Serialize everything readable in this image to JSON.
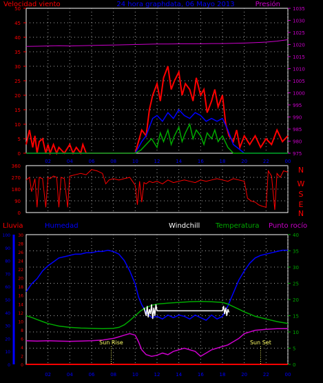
{
  "colors": {
    "background": "#000000",
    "axis_left_top": "#ff0000",
    "axis_right_top": "#cc00cc",
    "grid": "#aaaaaa",
    "title": "#0000ff",
    "wind_gust": "#ff0000",
    "wind_avg": "#0000ff",
    "wind_min": "#00aa00",
    "pressure": "#cc00cc",
    "direction": "#ff0000",
    "humidity": "#0000ff",
    "windchill": "#ffffff",
    "temperature": "#00aa00",
    "dewpoint": "#cc00cc",
    "rain": "#ff0000",
    "sun_label": "#ffff66",
    "x_tick": "#0000ff",
    "left_axis_bottom": "#ff0000",
    "humidity_axis": "#0000ff",
    "right_axis_bottom": "#00aa00"
  },
  "chart_data": [
    {
      "type": "line",
      "title": "24 hora graphdata, 06 Mayo 2013",
      "left_label": "Velocidad viento",
      "right_label": "Presión",
      "x_ticks": [
        "02",
        "04",
        "06",
        "08",
        "10",
        "12",
        "14",
        "16",
        "18",
        "20",
        "22",
        "00"
      ],
      "x_range": [
        0,
        24
      ],
      "y_left_ticks": [
        0,
        5,
        10,
        15,
        20,
        25,
        30,
        35,
        40,
        45,
        50
      ],
      "y_left_range": [
        0,
        50
      ],
      "y_right_ticks": [
        975,
        980,
        985,
        990,
        995,
        1000,
        1005,
        1010,
        1015,
        1020,
        1025,
        1030,
        1035
      ],
      "y_right_range": [
        975,
        1035
      ],
      "grid": true,
      "series": [
        {
          "key": "wind_gust",
          "x": [
            0,
            0.3,
            0.6,
            0.8,
            1.0,
            1.2,
            1.5,
            1.8,
            2.0,
            2.2,
            2.5,
            2.8,
            3.0,
            3.5,
            4.0,
            4.3,
            4.6,
            5.0,
            5.2,
            5.5,
            6.0,
            6.5,
            7.0,
            7.5,
            8.0,
            8.5,
            9.0,
            9.5,
            10.0,
            10.3,
            10.6,
            11.0,
            11.3,
            11.6,
            12.0,
            12.3,
            12.6,
            13.0,
            13.3,
            13.6,
            14.0,
            14.3,
            14.6,
            15.0,
            15.3,
            15.6,
            16.0,
            16.3,
            16.6,
            17.0,
            17.3,
            17.6,
            18.0,
            18.3,
            18.6,
            19.0,
            19.3,
            19.6,
            20.0,
            20.5,
            21.0,
            21.5,
            22.0,
            22.5,
            23.0,
            23.5,
            24.0
          ],
          "y": [
            3,
            8,
            2,
            6,
            0,
            4,
            5,
            0,
            3,
            0,
            3,
            0,
            2,
            0,
            3,
            0,
            2,
            0,
            3,
            0,
            0,
            0,
            0,
            0,
            0,
            0,
            0,
            0,
            0,
            4,
            8,
            6,
            15,
            20,
            24,
            18,
            26,
            30,
            22,
            25,
            28,
            20,
            24,
            22,
            18,
            26,
            20,
            22,
            14,
            18,
            22,
            16,
            20,
            10,
            6,
            4,
            8,
            2,
            6,
            3,
            6,
            2,
            5,
            3,
            8,
            4,
            6
          ]
        },
        {
          "key": "wind_avg",
          "x": [
            0,
            2,
            4,
            6,
            8,
            10,
            10.3,
            10.6,
            11.0,
            11.3,
            11.6,
            12.0,
            12.5,
            13.0,
            13.5,
            14.0,
            14.5,
            15.0,
            15.5,
            16.0,
            16.5,
            17.0,
            17.5,
            18.0,
            18.5,
            19.0,
            20,
            22,
            24
          ],
          "y": [
            0,
            0,
            0,
            0,
            0,
            0,
            2,
            4,
            6,
            9,
            12,
            13,
            11,
            14,
            12,
            15,
            13,
            12,
            14,
            13,
            11,
            12,
            11,
            12,
            8,
            3,
            0,
            0,
            0
          ]
        },
        {
          "key": "wind_min",
          "x": [
            0,
            2,
            4,
            6,
            8,
            10,
            10.5,
            11.0,
            11.5,
            12.0,
            12.3,
            12.6,
            13.0,
            13.3,
            13.6,
            14.0,
            14.3,
            14.6,
            15.0,
            15.3,
            15.6,
            16.0,
            16.3,
            16.6,
            17.0,
            17.3,
            17.6,
            18.0,
            18.5,
            19.0,
            20,
            22,
            24
          ],
          "y": [
            0,
            0,
            0,
            0,
            0,
            0,
            1,
            3,
            5,
            2,
            7,
            4,
            8,
            3,
            6,
            9,
            4,
            7,
            10,
            5,
            8,
            6,
            3,
            7,
            5,
            8,
            4,
            6,
            2,
            0,
            0,
            0,
            0
          ]
        },
        {
          "key": "pressure",
          "axis": "right",
          "x": [
            0,
            1,
            2,
            3,
            4,
            5,
            6,
            7,
            8,
            9,
            10,
            11,
            12,
            13,
            14,
            15,
            16,
            17,
            18,
            19,
            20,
            21,
            22,
            23,
            24
          ],
          "y": [
            1019.2,
            1019.3,
            1019.4,
            1019.5,
            1019.4,
            1019.5,
            1019.6,
            1019.7,
            1019.8,
            1019.9,
            1020.0,
            1020.1,
            1020.2,
            1020.2,
            1020.3,
            1020.3,
            1020.3,
            1020.4,
            1020.4,
            1020.5,
            1020.6,
            1020.8,
            1021.0,
            1021.4,
            1022.0
          ]
        }
      ]
    },
    {
      "type": "line",
      "right_labels": [
        "N",
        "W",
        "S",
        "E",
        "N"
      ],
      "y_ticks": [
        0,
        90,
        180,
        270,
        360
      ],
      "y_range": [
        0,
        360
      ],
      "x_range": [
        0,
        24
      ],
      "grid": true,
      "series": [
        {
          "key": "direction",
          "x": [
            0,
            0.3,
            0.5,
            0.8,
            1.0,
            1.2,
            1.5,
            1.8,
            2.0,
            2.2,
            2.5,
            2.8,
            3.0,
            3.2,
            3.5,
            3.8,
            4.0,
            4.5,
            5.0,
            5.5,
            6.0,
            6.5,
            7.0,
            7.3,
            7.6,
            8.0,
            8.5,
            9.0,
            9.5,
            10.0,
            10.2,
            10.4,
            10.6,
            10.8,
            11.0,
            11.3,
            11.6,
            12.0,
            12.5,
            13.0,
            13.5,
            14.0,
            14.5,
            15.0,
            15.5,
            16.0,
            16.5,
            17.0,
            17.5,
            18.0,
            18.5,
            19.0,
            19.5,
            20.0,
            20.3,
            20.6,
            21.0,
            21.3,
            21.6,
            22.0,
            22.2,
            22.5,
            22.8,
            23.0,
            23.3,
            23.6,
            24.0
          ],
          "y": [
            250,
            270,
            160,
            260,
            40,
            270,
            260,
            40,
            270,
            260,
            280,
            270,
            40,
            270,
            260,
            40,
            280,
            290,
            300,
            290,
            330,
            320,
            300,
            220,
            250,
            260,
            250,
            260,
            270,
            210,
            60,
            240,
            80,
            230,
            220,
            240,
            230,
            240,
            220,
            250,
            230,
            240,
            250,
            240,
            230,
            250,
            240,
            250,
            260,
            250,
            240,
            260,
            250,
            240,
            110,
            90,
            80,
            60,
            50,
            40,
            320,
            280,
            20,
            300,
            270,
            320,
            310
          ]
        }
      ]
    },
    {
      "type": "line",
      "labels": {
        "rain": "Lluvia",
        "humidity": "Humedad",
        "windchill": "Windchill",
        "temperature": "Temperatura",
        "dewpoint": "Punto rocío"
      },
      "x_ticks": [
        "02",
        "04",
        "06",
        "08",
        "10",
        "12",
        "14",
        "16",
        "18",
        "20",
        "22",
        "00"
      ],
      "x_range": [
        0,
        24
      ],
      "y_rain_ticks": [
        0,
        2,
        4,
        6,
        8,
        10,
        12,
        14,
        16,
        18,
        20,
        22,
        24,
        26,
        28,
        30
      ],
      "y_rain_range": [
        0,
        30
      ],
      "y_humidity_ticks": [
        0,
        10,
        20,
        30,
        40,
        50,
        60,
        70,
        80,
        90,
        100
      ],
      "y_humidity_range": [
        0,
        100
      ],
      "y_temp_ticks": [
        0,
        5,
        10,
        15,
        20,
        25,
        30,
        35,
        40
      ],
      "y_temp_range": [
        0,
        40
      ],
      "grid": true,
      "annotations": [
        {
          "text": "Sun Rise",
          "x": 7.8
        },
        {
          "text": "Sun Set",
          "x": 21.5
        }
      ],
      "series": [
        {
          "key": "humidity",
          "axis": "humidity",
          "x": [
            0,
            0.5,
            1,
            1.5,
            2,
            2.5,
            3,
            3.5,
            4,
            4.5,
            5,
            5.5,
            6,
            6.5,
            7,
            7.5,
            8,
            8.5,
            9,
            9.5,
            10,
            10.3,
            10.6,
            11,
            11.5,
            12,
            12.5,
            13,
            13.5,
            14,
            14.5,
            15,
            15.5,
            16,
            16.5,
            17,
            17.5,
            18,
            18.5,
            19,
            19.5,
            20,
            20.5,
            21,
            21.5,
            22,
            22.5,
            23,
            23.5,
            24
          ],
          "y": [
            56,
            62,
            66,
            72,
            76,
            79,
            82,
            83,
            84,
            85,
            85,
            86,
            86,
            87,
            87,
            88,
            87,
            85,
            80,
            72,
            62,
            52,
            46,
            40,
            36,
            37,
            35,
            38,
            36,
            38,
            37,
            35,
            38,
            36,
            34,
            38,
            35,
            37,
            45,
            55,
            65,
            72,
            78,
            82,
            84,
            85,
            86,
            87,
            88,
            88
          ]
        },
        {
          "key": "temperature",
          "axis": "temp",
          "x": [
            0,
            0.5,
            1,
            1.5,
            2,
            2.5,
            3,
            4,
            5,
            6,
            7,
            8,
            8.5,
            9,
            9.5,
            10,
            10.5,
            11,
            11.5,
            12,
            13,
            14,
            15,
            16,
            17,
            18,
            18.5,
            19,
            19.5,
            20,
            20.5,
            21,
            22,
            23,
            24
          ],
          "y": [
            15,
            14.5,
            13.8,
            13.2,
            12.6,
            12.2,
            11.8,
            11.4,
            11.2,
            11.1,
            11.0,
            11.1,
            11.4,
            12.2,
            13.5,
            15.0,
            16.5,
            17.5,
            18.2,
            18.6,
            18.9,
            19.1,
            19.3,
            19.4,
            19.3,
            19.1,
            18.6,
            17.8,
            17.0,
            16.2,
            15.5,
            14.8,
            14.0,
            13.2,
            12.6
          ]
        },
        {
          "key": "windchill",
          "axis": "temp",
          "x": [
            10.8,
            11.0,
            11.1,
            11.2,
            11.3,
            11.4,
            11.5,
            11.6,
            11.7,
            11.8,
            11.9,
            12.0,
            18.0,
            18.1,
            18.2,
            18.3,
            18.4,
            18.5,
            18.6
          ],
          "y": [
            17.5,
            15.0,
            18.0,
            14.5,
            17.0,
            15.5,
            18.5,
            14.0,
            17.5,
            15.0,
            18.5,
            16.5,
            16.5,
            18.0,
            15.5,
            17.5,
            15.0,
            17.0,
            16.0
          ]
        },
        {
          "key": "dewpoint",
          "axis": "temp",
          "x": [
            0,
            1,
            2,
            3,
            4,
            5,
            6,
            7,
            8,
            8.5,
            9,
            9.5,
            10,
            10.3,
            10.6,
            11,
            11.5,
            12,
            12.5,
            13,
            13.5,
            14,
            14.5,
            15,
            15.5,
            16,
            16.5,
            17,
            17.5,
            18,
            18.5,
            19,
            19.5,
            20,
            21,
            22,
            23,
            24
          ],
          "y": [
            7.3,
            7.2,
            7.3,
            7.2,
            7.1,
            7.2,
            7.3,
            7.5,
            8.0,
            8.5,
            9.0,
            9.5,
            9.0,
            7.0,
            4.5,
            3.0,
            2.5,
            2.8,
            3.5,
            3.0,
            4.0,
            4.5,
            5.0,
            4.5,
            4.0,
            2.5,
            3.5,
            4.5,
            5.0,
            5.5,
            6.0,
            7.0,
            8.0,
            9.5,
            10.5,
            10.8,
            11.0,
            11.0
          ]
        },
        {
          "key": "rain",
          "axis": "rain",
          "x": [
            0,
            24
          ],
          "y": [
            0,
            0
          ]
        }
      ]
    }
  ]
}
